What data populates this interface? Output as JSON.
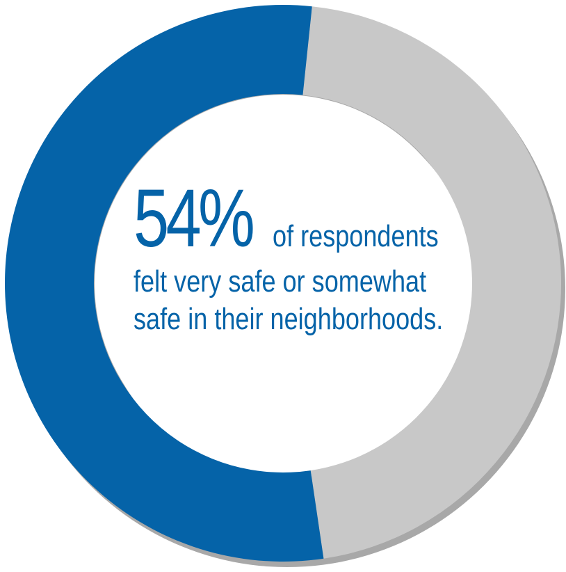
{
  "chart_data": {
    "type": "pie",
    "donut": true,
    "start_angle_deg": 6,
    "slices": [
      {
        "value": 46,
        "color": "#c8c8c8"
      },
      {
        "value": 54,
        "color": "#0563a8"
      }
    ],
    "shadow_color": "#a8a8a8"
  },
  "callout": {
    "percent": "54%",
    "line1": "of respondents",
    "line2": "felt very safe or somewhat",
    "line3": "safe in their neighborhoods."
  }
}
